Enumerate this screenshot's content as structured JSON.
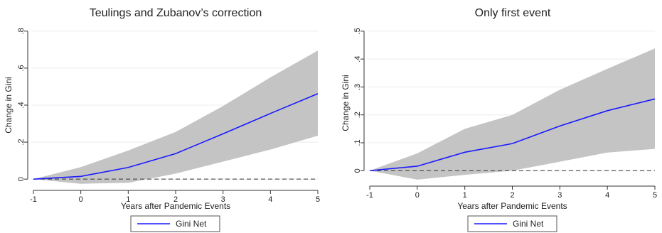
{
  "chart_data": [
    {
      "type": "line",
      "title": "Teulings and Zubanov’s correction",
      "xlabel": "Years after Pandemic Events",
      "ylabel": "Change in Gini",
      "x": [
        -1,
        0,
        1,
        2,
        3,
        4,
        5
      ],
      "x_tick_labels": [
        "-1",
        "0",
        "1",
        "2",
        "3",
        "4",
        "5"
      ],
      "y_ticks": [
        0,
        0.2,
        0.4,
        0.6,
        0.8
      ],
      "y_tick_labels": [
        "0",
        ".2",
        ".4",
        ".6",
        ".8"
      ],
      "ylim": [
        -0.03,
        0.83
      ],
      "grid": true,
      "reference_line": 0,
      "series": [
        {
          "name": "Gini Net",
          "color": "#1a1aff",
          "values": [
            0.0,
            0.015,
            0.063,
            0.138,
            0.245,
            0.355,
            0.462
          ]
        }
      ],
      "confidence_band": {
        "color": "#c4c4c4",
        "upper": [
          0.0,
          0.065,
          0.155,
          0.255,
          0.395,
          0.55,
          0.695
        ],
        "lower": [
          0.0,
          -0.025,
          -0.02,
          0.03,
          0.095,
          0.16,
          0.235
        ]
      },
      "legend": {
        "position": "bottom",
        "entries": [
          "Gini Net"
        ]
      }
    },
    {
      "type": "line",
      "title": "Only first event",
      "xlabel": "Years after Pandemic Events",
      "ylabel": "Change in Gini",
      "x": [
        -1,
        0,
        1,
        2,
        3,
        4,
        5
      ],
      "x_tick_labels": [
        "-1",
        "0",
        "1",
        "2",
        "3",
        "4",
        "5"
      ],
      "y_ticks": [
        0,
        0.1,
        0.2,
        0.3,
        0.4,
        0.5
      ],
      "y_tick_labels": [
        "0",
        ".1",
        ".2",
        ".3",
        ".4",
        ".5"
      ],
      "ylim": [
        -0.035,
        0.52
      ],
      "grid": true,
      "reference_line": 0,
      "series": [
        {
          "name": "Gini Net",
          "color": "#1a1aff",
          "values": [
            0.0,
            0.016,
            0.066,
            0.097,
            0.16,
            0.215,
            0.257
          ]
        }
      ],
      "confidence_band": {
        "color": "#c4c4c4",
        "upper": [
          0.0,
          0.062,
          0.15,
          0.2,
          0.29,
          0.365,
          0.438
        ],
        "lower": [
          0.0,
          -0.032,
          -0.015,
          0.0,
          0.032,
          0.065,
          0.078
        ]
      },
      "legend": {
        "position": "bottom",
        "entries": [
          "Gini Net"
        ]
      }
    }
  ]
}
